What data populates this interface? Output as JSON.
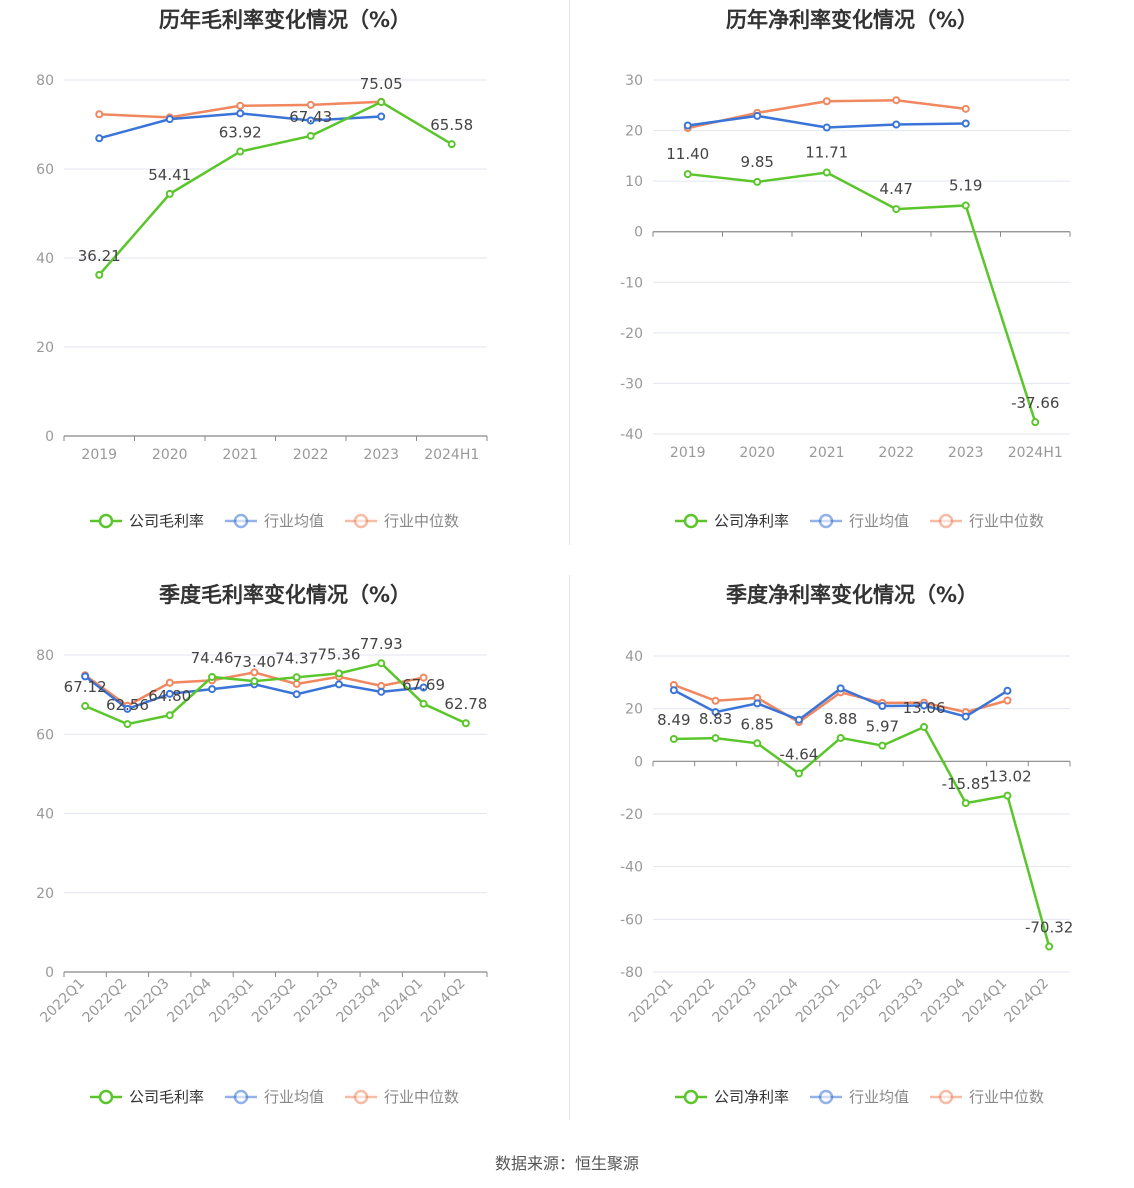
{
  "footer": {
    "source": "数据来源：恒生聚源"
  },
  "colors": {
    "company": "#5ac62b",
    "average": "#3a74d8",
    "median": "#f0875f",
    "axis": "#999999",
    "grid": "#e2e6f0"
  },
  "chart_data": [
    {
      "type": "line",
      "title": "历年毛利率变化情况（%）",
      "categories": [
        "2019",
        "2020",
        "2021",
        "2022",
        "2023",
        "2024H1"
      ],
      "ylim": [
        0,
        80
      ],
      "yticks": [
        0,
        20,
        40,
        60,
        80
      ],
      "legend": [
        "公司毛利率",
        "行业均值",
        "行业中位数"
      ],
      "series": [
        {
          "name": "公司毛利率",
          "values": [
            36.21,
            54.41,
            63.92,
            67.43,
            75.05,
            65.58
          ],
          "labels": [
            "36.21",
            "54.41",
            "63.92",
            "67.43",
            "75.05",
            "65.58"
          ]
        },
        {
          "name": "行业均值",
          "values": [
            66.9,
            71.2,
            72.5,
            70.9,
            71.8,
            null
          ]
        },
        {
          "name": "行业中位数",
          "values": [
            72.3,
            71.6,
            74.2,
            74.4,
            75.1,
            null
          ]
        }
      ]
    },
    {
      "type": "line",
      "title": "历年净利率变化情况（%）",
      "categories": [
        "2019",
        "2020",
        "2021",
        "2022",
        "2023",
        "2024H1"
      ],
      "ylim": [
        -40,
        30
      ],
      "yticks": [
        -40,
        -30,
        -20,
        -10,
        0,
        10,
        20,
        30
      ],
      "legend": [
        "公司净利率",
        "行业均值",
        "行业中位数"
      ],
      "series": [
        {
          "name": "公司净利率",
          "values": [
            11.4,
            9.85,
            11.71,
            4.47,
            5.19,
            -37.66
          ],
          "labels": [
            "11.40",
            "9.85",
            "11.71",
            "4.47",
            "5.19",
            "-37.66"
          ]
        },
        {
          "name": "行业均值",
          "values": [
            21.0,
            22.9,
            20.6,
            21.2,
            21.4,
            null
          ]
        },
        {
          "name": "行业中位数",
          "values": [
            20.5,
            23.5,
            25.8,
            26.0,
            24.3,
            null
          ]
        }
      ]
    },
    {
      "type": "line",
      "title": "季度毛利率变化情况（%）",
      "categories": [
        "2022Q1",
        "2022Q2",
        "2022Q3",
        "2022Q4",
        "2023Q1",
        "2023Q2",
        "2023Q3",
        "2023Q4",
        "2024Q1",
        "2024Q2"
      ],
      "ylim": [
        0,
        80
      ],
      "yticks": [
        0,
        20,
        40,
        60,
        80
      ],
      "legend": [
        "公司毛利率",
        "行业均值",
        "行业中位数"
      ],
      "series": [
        {
          "name": "公司毛利率",
          "values": [
            67.12,
            62.56,
            64.8,
            74.46,
            73.4,
            74.37,
            75.36,
            77.93,
            67.69,
            62.78
          ],
          "labels": [
            "67.12",
            "62.56",
            "64.80",
            "74.46",
            "73.40",
            "74.37",
            "75.36",
            "77.93",
            "67.69",
            "62.78"
          ]
        },
        {
          "name": "行业均值",
          "values": [
            74.6,
            66.4,
            70.2,
            71.4,
            72.6,
            70.1,
            72.6,
            70.7,
            71.8,
            null
          ]
        },
        {
          "name": "行业中位数",
          "values": [
            74.9,
            67.2,
            73.0,
            73.6,
            75.6,
            72.7,
            74.5,
            72.2,
            74.3,
            null
          ]
        }
      ]
    },
    {
      "type": "line",
      "title": "季度净利率变化情况（%）",
      "categories": [
        "2022Q1",
        "2022Q2",
        "2022Q3",
        "2022Q4",
        "2023Q1",
        "2023Q2",
        "2023Q3",
        "2023Q4",
        "2024Q1",
        "2024Q2"
      ],
      "ylim": [
        -80,
        40
      ],
      "yticks": [
        -80,
        -60,
        -40,
        -20,
        0,
        20,
        40
      ],
      "legend": [
        "公司净利率",
        "行业均值",
        "行业中位数"
      ],
      "series": [
        {
          "name": "公司净利率",
          "values": [
            8.49,
            8.83,
            6.85,
            -4.64,
            8.88,
            5.97,
            13.06,
            -15.85,
            -13.02,
            -70.32
          ],
          "labels": [
            "8.49",
            "8.83",
            "6.85",
            "-4.64",
            "8.88",
            "5.97",
            "13.06",
            "-15.85",
            "-13.02",
            "-70.32"
          ]
        },
        {
          "name": "行业均值",
          "values": [
            27.0,
            18.7,
            22.0,
            15.8,
            27.7,
            21.0,
            21.2,
            17.0,
            26.8,
            null
          ]
        },
        {
          "name": "行业中位数",
          "values": [
            29.0,
            23.0,
            24.1,
            14.9,
            26.2,
            22.2,
            22.3,
            18.7,
            23.1,
            null
          ]
        }
      ]
    }
  ]
}
